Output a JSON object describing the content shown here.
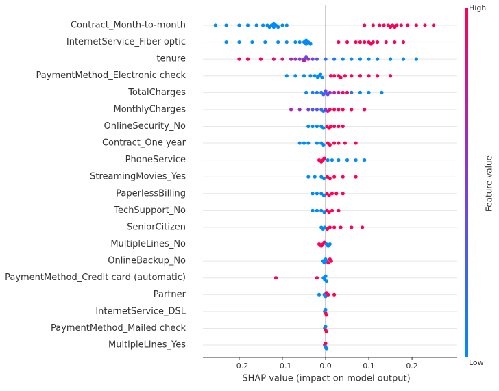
{
  "chart_data": {
    "type": "beeswarm",
    "xlabel": "SHAP value (impact on model output)",
    "colorbar_label": "Feature value",
    "colorbar_high": "High",
    "colorbar_low": "Low",
    "colormap": [
      "#008bfb",
      "#7c3de0",
      "#ff0052"
    ],
    "xlim": [
      -0.284,
      0.303
    ],
    "xticks": [
      {
        "value": -0.2,
        "label": "−0.2"
      },
      {
        "value": -0.1,
        "label": "−0.1"
      },
      {
        "value": 0,
        "label": "0.0"
      },
      0.1,
      0.2
    ],
    "categories": [
      "Contract_Month-to-month",
      "InternetService_Fiber optic",
      "tenure",
      "PaymentMethod_Electronic check",
      "TotalCharges",
      "MonthlyCharges",
      "OnlineSecurity_No",
      "Contract_One year",
      "PhoneService",
      "StreamingMovies_Yes",
      "PaperlessBilling",
      "TechSupport_No",
      "SeniorCitizen",
      "MultipleLines_No",
      "OnlineBackup_No",
      "PaymentMethod_Credit card (automatic)",
      "Partner",
      "InternetService_DSL",
      "PaymentMethod_Mailed check",
      "MultipleLines_Yes"
    ],
    "points": [
      [
        [
          -0.255,
          0
        ],
        [
          -0.23,
          0
        ],
        [
          -0.2,
          0
        ],
        [
          -0.18,
          0
        ],
        [
          -0.16,
          0
        ],
        [
          -0.145,
          0
        ],
        [
          -0.135,
          0
        ],
        [
          -0.13,
          0
        ],
        [
          -0.125,
          0
        ],
        [
          -0.12,
          0
        ],
        [
          -0.12,
          0
        ],
        [
          -0.115,
          0
        ],
        [
          -0.11,
          0
        ],
        [
          -0.1,
          0
        ],
        [
          -0.09,
          0
        ],
        [
          0.09,
          1
        ],
        [
          0.11,
          1
        ],
        [
          0.125,
          1
        ],
        [
          0.135,
          1
        ],
        [
          0.145,
          1
        ],
        [
          0.15,
          1
        ],
        [
          0.155,
          1
        ],
        [
          0.16,
          1
        ],
        [
          0.165,
          1
        ],
        [
          0.175,
          1
        ],
        [
          0.19,
          1
        ],
        [
          0.21,
          1
        ],
        [
          0.23,
          1
        ],
        [
          0.25,
          1
        ]
      ],
      [
        [
          -0.23,
          0
        ],
        [
          -0.2,
          0
        ],
        [
          -0.17,
          0
        ],
        [
          -0.14,
          0
        ],
        [
          -0.11,
          0
        ],
        [
          -0.09,
          0
        ],
        [
          -0.07,
          0
        ],
        [
          -0.06,
          0
        ],
        [
          -0.05,
          0
        ],
        [
          -0.045,
          0
        ],
        [
          -0.045,
          0
        ],
        [
          -0.04,
          0
        ],
        [
          -0.035,
          0
        ],
        [
          0.03,
          1
        ],
        [
          0.05,
          1
        ],
        [
          0.07,
          1
        ],
        [
          0.08,
          1
        ],
        [
          0.09,
          1
        ],
        [
          0.1,
          1
        ],
        [
          0.105,
          1
        ],
        [
          0.11,
          1
        ],
        [
          0.12,
          1
        ],
        [
          0.14,
          1
        ],
        [
          0.16,
          1
        ],
        [
          0.18,
          1
        ]
      ],
      [
        [
          -0.2,
          1
        ],
        [
          -0.18,
          1
        ],
        [
          -0.15,
          1
        ],
        [
          -0.12,
          0.9
        ],
        [
          -0.1,
          0.8
        ],
        [
          -0.08,
          0.7
        ],
        [
          -0.07,
          0.6
        ],
        [
          -0.06,
          0.55
        ],
        [
          -0.05,
          0.5
        ],
        [
          -0.05,
          0.8
        ],
        [
          -0.045,
          0.4
        ],
        [
          -0.04,
          0.6
        ],
        [
          -0.03,
          0.5
        ],
        [
          -0.02,
          0.3
        ],
        [
          0,
          0.2
        ],
        [
          0.02,
          0.1
        ],
        [
          0.04,
          0
        ],
        [
          0.06,
          0
        ],
        [
          0.08,
          0
        ],
        [
          0.1,
          0
        ],
        [
          0.12,
          0
        ],
        [
          0.15,
          0
        ],
        [
          0.18,
          0
        ],
        [
          0.21,
          0
        ]
      ],
      [
        [
          -0.09,
          0
        ],
        [
          -0.07,
          0
        ],
        [
          -0.05,
          0
        ],
        [
          -0.035,
          0
        ],
        [
          -0.025,
          0
        ],
        [
          -0.018,
          0
        ],
        [
          -0.015,
          0
        ],
        [
          -0.012,
          0
        ],
        [
          -0.008,
          0
        ],
        [
          0.012,
          1
        ],
        [
          0.02,
          1
        ],
        [
          0.03,
          1
        ],
        [
          0.035,
          1
        ],
        [
          0.045,
          1
        ],
        [
          0.06,
          1
        ],
        [
          0.08,
          1
        ],
        [
          0.1,
          1
        ],
        [
          0.12,
          1
        ],
        [
          0.15,
          1
        ]
      ],
      [
        [
          -0.045,
          0
        ],
        [
          -0.03,
          0.1
        ],
        [
          -0.02,
          0.2
        ],
        [
          -0.01,
          0
        ],
        [
          -0.005,
          0.3
        ],
        [
          0,
          0.1
        ],
        [
          0,
          0.5
        ],
        [
          0.005,
          0.4
        ],
        [
          0.01,
          0.6
        ],
        [
          0.02,
          0.7
        ],
        [
          0.03,
          0.8
        ],
        [
          0.04,
          0.9
        ],
        [
          0.05,
          0.9
        ],
        [
          0.06,
          0.2
        ],
        [
          0.08,
          0
        ],
        [
          0.1,
          0
        ],
        [
          0.13,
          0
        ]
      ],
      [
        [
          -0.08,
          0.7
        ],
        [
          -0.06,
          0.6
        ],
        [
          -0.04,
          0.5
        ],
        [
          -0.03,
          0.3
        ],
        [
          -0.02,
          0.4
        ],
        [
          -0.01,
          0.2
        ],
        [
          -0.005,
          0.1
        ],
        [
          0,
          0.5
        ],
        [
          0.005,
          0.8
        ],
        [
          0.01,
          0.9
        ],
        [
          0.02,
          1
        ],
        [
          0.03,
          1
        ],
        [
          0.04,
          1
        ],
        [
          0.06,
          1
        ],
        [
          0.09,
          1
        ]
      ],
      [
        [
          -0.04,
          0
        ],
        [
          -0.03,
          0
        ],
        [
          -0.02,
          0
        ],
        [
          -0.01,
          0
        ],
        [
          -0.005,
          0
        ],
        [
          0.003,
          1
        ],
        [
          0.008,
          1
        ],
        [
          0.012,
          1
        ],
        [
          0.02,
          1
        ],
        [
          0.03,
          1
        ],
        [
          0.04,
          1
        ]
      ],
      [
        [
          -0.06,
          0
        ],
        [
          -0.05,
          0
        ],
        [
          -0.04,
          0
        ],
        [
          -0.02,
          0
        ],
        [
          -0.01,
          0
        ],
        [
          -0.005,
          0
        ],
        [
          0.005,
          1
        ],
        [
          0.01,
          1
        ],
        [
          0.02,
          1
        ],
        [
          0.03,
          1
        ],
        [
          0.045,
          1
        ],
        [
          0.07,
          1
        ]
      ],
      [
        [
          -0.015,
          1
        ],
        [
          -0.01,
          1
        ],
        [
          -0.006,
          1
        ],
        [
          -0.003,
          1
        ],
        [
          0.005,
          0
        ],
        [
          0.015,
          0
        ],
        [
          0.03,
          0
        ],
        [
          0.05,
          0
        ],
        [
          0.07,
          0
        ],
        [
          0.09,
          0
        ]
      ],
      [
        [
          -0.04,
          0
        ],
        [
          -0.025,
          0
        ],
        [
          -0.01,
          0
        ],
        [
          -0.004,
          0
        ],
        [
          0.004,
          1
        ],
        [
          0.01,
          1
        ],
        [
          0.02,
          1
        ],
        [
          0.04,
          1
        ],
        [
          0.07,
          1
        ]
      ],
      [
        [
          -0.03,
          0
        ],
        [
          -0.02,
          0
        ],
        [
          -0.01,
          0
        ],
        [
          -0.004,
          0
        ],
        [
          0.003,
          1
        ],
        [
          0.008,
          1
        ],
        [
          0.015,
          1
        ],
        [
          0.025,
          1
        ],
        [
          0.04,
          1
        ]
      ],
      [
        [
          -0.03,
          0
        ],
        [
          -0.02,
          0
        ],
        [
          -0.01,
          0
        ],
        [
          -0.003,
          0
        ],
        [
          0.003,
          1
        ],
        [
          0.008,
          1
        ],
        [
          0.015,
          1
        ],
        [
          0.03,
          1
        ]
      ],
      [
        [
          -0.01,
          0
        ],
        [
          -0.006,
          0
        ],
        [
          -0.002,
          0
        ],
        [
          0.004,
          1
        ],
        [
          0.01,
          1
        ],
        [
          0.02,
          1
        ],
        [
          0.035,
          1
        ],
        [
          0.06,
          1
        ],
        [
          0.085,
          1
        ]
      ],
      [
        [
          -0.015,
          1
        ],
        [
          -0.01,
          1
        ],
        [
          -0.006,
          1
        ],
        [
          -0.003,
          1
        ],
        [
          0.002,
          0
        ],
        [
          0.006,
          0
        ],
        [
          0.01,
          0
        ]
      ],
      [
        [
          -0.006,
          0
        ],
        [
          -0.003,
          0
        ],
        [
          0,
          0
        ],
        [
          0.003,
          0
        ],
        [
          0.006,
          1
        ],
        [
          0.01,
          1
        ],
        [
          0.013,
          1
        ]
      ],
      [
        [
          -0.115,
          1
        ],
        [
          -0.02,
          1
        ],
        [
          -0.005,
          0
        ],
        [
          -0.002,
          0
        ],
        [
          0,
          0
        ],
        [
          0.002,
          0
        ]
      ],
      [
        [
          -0.015,
          0
        ],
        [
          -0.003,
          0
        ],
        [
          0,
          0
        ],
        [
          0.002,
          1
        ],
        [
          0.006,
          1
        ],
        [
          0.02,
          1
        ]
      ],
      [
        [
          -0.002,
          0
        ],
        [
          0,
          1
        ],
        [
          0,
          0
        ],
        [
          0.002,
          1
        ]
      ],
      [
        [
          -0.002,
          0
        ],
        [
          0,
          1
        ],
        [
          0,
          0
        ],
        [
          0.002,
          1
        ]
      ],
      [
        [
          -0.002,
          1
        ],
        [
          0,
          0
        ],
        [
          0,
          1
        ],
        [
          0.002,
          0
        ]
      ]
    ]
  }
}
